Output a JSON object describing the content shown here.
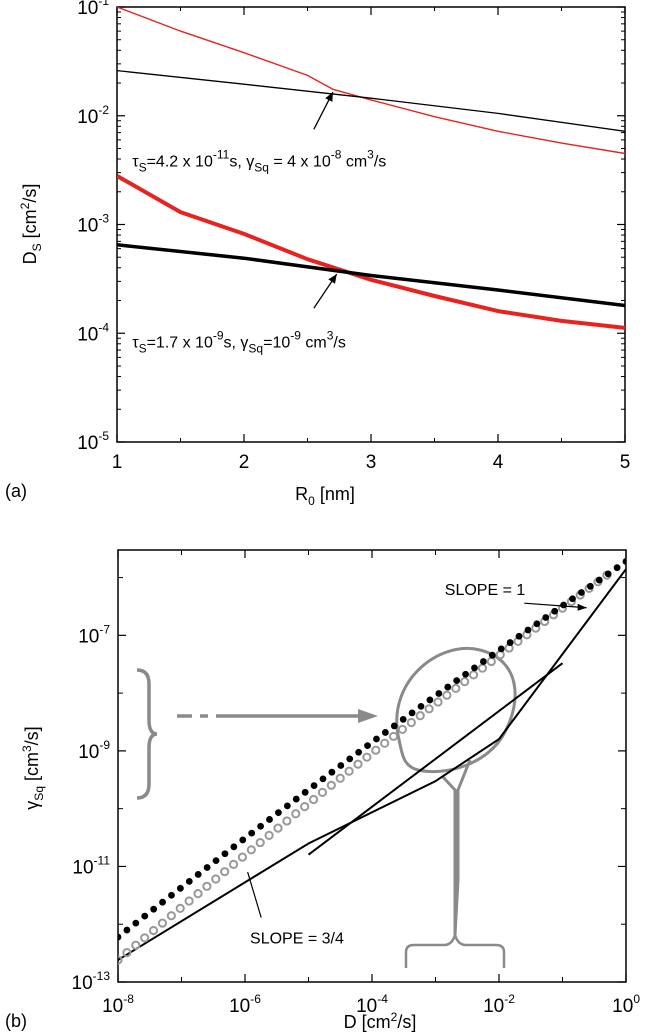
{
  "chart_data": [
    {
      "panel_label": "(a)",
      "type": "line",
      "xlabel_main": "R",
      "xlabel_sub": "0",
      "xlabel_unit": " [nm]",
      "ylabel_main": "D",
      "ylabel_sub": "S",
      "ylabel_unit": " [cm",
      "ylabel_exp": "2",
      "ylabel_end": "/s]",
      "xlim": [
        1,
        5
      ],
      "ylim": [
        1e-05,
        0.1
      ],
      "yscale": "log",
      "xticks": [
        "1",
        "2",
        "3",
        "4",
        "5"
      ],
      "yticks": [
        {
          "v": 1e-05,
          "base": "10",
          "exp": "-5"
        },
        {
          "v": 0.0001,
          "base": "10",
          "exp": "-4"
        },
        {
          "v": 0.001,
          "base": "10",
          "exp": "-3"
        },
        {
          "v": 0.01,
          "base": "10",
          "exp": "-2"
        },
        {
          "v": 0.1,
          "base": "10",
          "exp": "-1"
        }
      ],
      "series": [
        {
          "color": "#e8231f",
          "width": 1.4,
          "x": [
            1,
            1.5,
            2,
            2.5,
            2.7,
            3,
            3.5,
            4,
            4.5,
            5
          ],
          "y": [
            0.1,
            0.06,
            0.038,
            0.0235,
            0.0175,
            0.014,
            0.0098,
            0.0072,
            0.0056,
            0.0045
          ]
        },
        {
          "color": "#000000",
          "width": 1.3,
          "x": [
            1,
            2,
            3,
            4,
            5
          ],
          "y": [
            0.026,
            0.0195,
            0.0145,
            0.0105,
            0.0072
          ]
        },
        {
          "color": "#e8231f",
          "width": 4,
          "x": [
            1,
            1.5,
            2,
            2.5,
            2.8,
            3,
            3.5,
            4,
            4.5,
            5
          ],
          "y": [
            0.0028,
            0.0013,
            0.00082,
            0.00048,
            0.00037,
            0.00031,
            0.00022,
            0.00016,
            0.00013,
            0.000112
          ]
        },
        {
          "color": "#000000",
          "width": 3.5,
          "x": [
            1,
            2,
            3,
            4,
            5
          ],
          "y": [
            0.00065,
            0.00049,
            0.00034,
            0.00025,
            0.00018
          ]
        }
      ],
      "annotations": [
        {
          "parts": [
            [
              "τ",
              ""
            ],
            [
              "S",
              "sub"
            ],
            [
              "=4.2 x 10",
              ""
            ],
            [
              "-11",
              "sup"
            ],
            [
              "s,  γ",
              ""
            ],
            [
              "Sq",
              "sub"
            ],
            [
              " = 4 x 10",
              ""
            ],
            [
              "-8",
              "sup"
            ],
            [
              " cm",
              ""
            ],
            [
              "3",
              "sup"
            ],
            [
              "/s",
              ""
            ]
          ],
          "x": 1.12,
          "y": 0.0034
        },
        {
          "parts": [
            [
              "τ",
              ""
            ],
            [
              "S",
              "sub"
            ],
            [
              "=1.7 x 10",
              ""
            ],
            [
              "-9",
              "sup"
            ],
            [
              "s,  γ",
              ""
            ],
            [
              "Sq",
              "sub"
            ],
            [
              "=10",
              ""
            ],
            [
              "-9",
              "sup"
            ],
            [
              " cm",
              ""
            ],
            [
              "3",
              "sup"
            ],
            [
              "/s",
              ""
            ]
          ],
          "x": 1.12,
          "y": 7.4e-05
        }
      ],
      "arrows": [
        {
          "from": [
            2.55,
            0.0075
          ],
          "to": [
            2.7,
            0.0165
          ]
        },
        {
          "from": [
            2.55,
            0.00017
          ],
          "to": [
            2.73,
            0.00035
          ]
        }
      ]
    },
    {
      "panel_label": "(b)",
      "type": "scatter",
      "xlabel_main": "D [cm",
      "xlabel_exp": "2",
      "xlabel_end": "/s]",
      "ylabel_main": "γ",
      "ylabel_sub": "Sq",
      "ylabel_unit": " [cm",
      "ylabel_exp": "3",
      "ylabel_end": "/s]",
      "xscale": "log",
      "yscale": "log",
      "xlim": [
        1e-08,
        1
      ],
      "ylim": [
        1e-13,
        3e-06
      ],
      "xticks": [
        {
          "v": 1e-08,
          "base": "10",
          "exp": "-8"
        },
        {
          "v": 1e-06,
          "base": "10",
          "exp": "-6"
        },
        {
          "v": 0.0001,
          "base": "10",
          "exp": "-4"
        },
        {
          "v": 0.01,
          "base": "10",
          "exp": "-2"
        },
        {
          "v": 1,
          "base": "10",
          "exp": "0"
        }
      ],
      "yticks": [
        {
          "v": 1e-13,
          "base": "10",
          "exp": "-13"
        },
        {
          "v": 1e-11,
          "base": "10",
          "exp": "-11"
        },
        {
          "v": 1e-09,
          "base": "10",
          "exp": "-9"
        },
        {
          "v": 1e-07,
          "base": "10",
          "exp": "-7"
        }
      ],
      "fit_line": {
        "x": [
          1e-08,
          1e-05,
          0.001,
          0.01,
          1
        ],
        "y": [
          2.4e-13,
          2.5e-11,
          3e-10,
          1.6e-09,
          1.4e-06
        ]
      },
      "slope_line": {
        "x": [
          1e-05,
          0.1
        ],
        "y": [
          1.6e-11,
          3.3e-08
        ]
      },
      "filled_points": {
        "x_start": 1e-08,
        "x_end": 1,
        "y_start": 6e-13,
        "y_end": 1.9e-06,
        "n": 58
      },
      "open_points": {
        "x_start": 1e-08,
        "x_end": 0.5,
        "y_start": 2.4e-13,
        "y_end": 1.1e-06,
        "n": 56
      },
      "labels": [
        {
          "text": "SLOPE  = 1",
          "x": 0.0014,
          "y": 5e-07
        },
        {
          "text": "SLOPE  = 3/4",
          "x": 1.2e-06,
          "y": 4.6e-13
        }
      ]
    }
  ]
}
